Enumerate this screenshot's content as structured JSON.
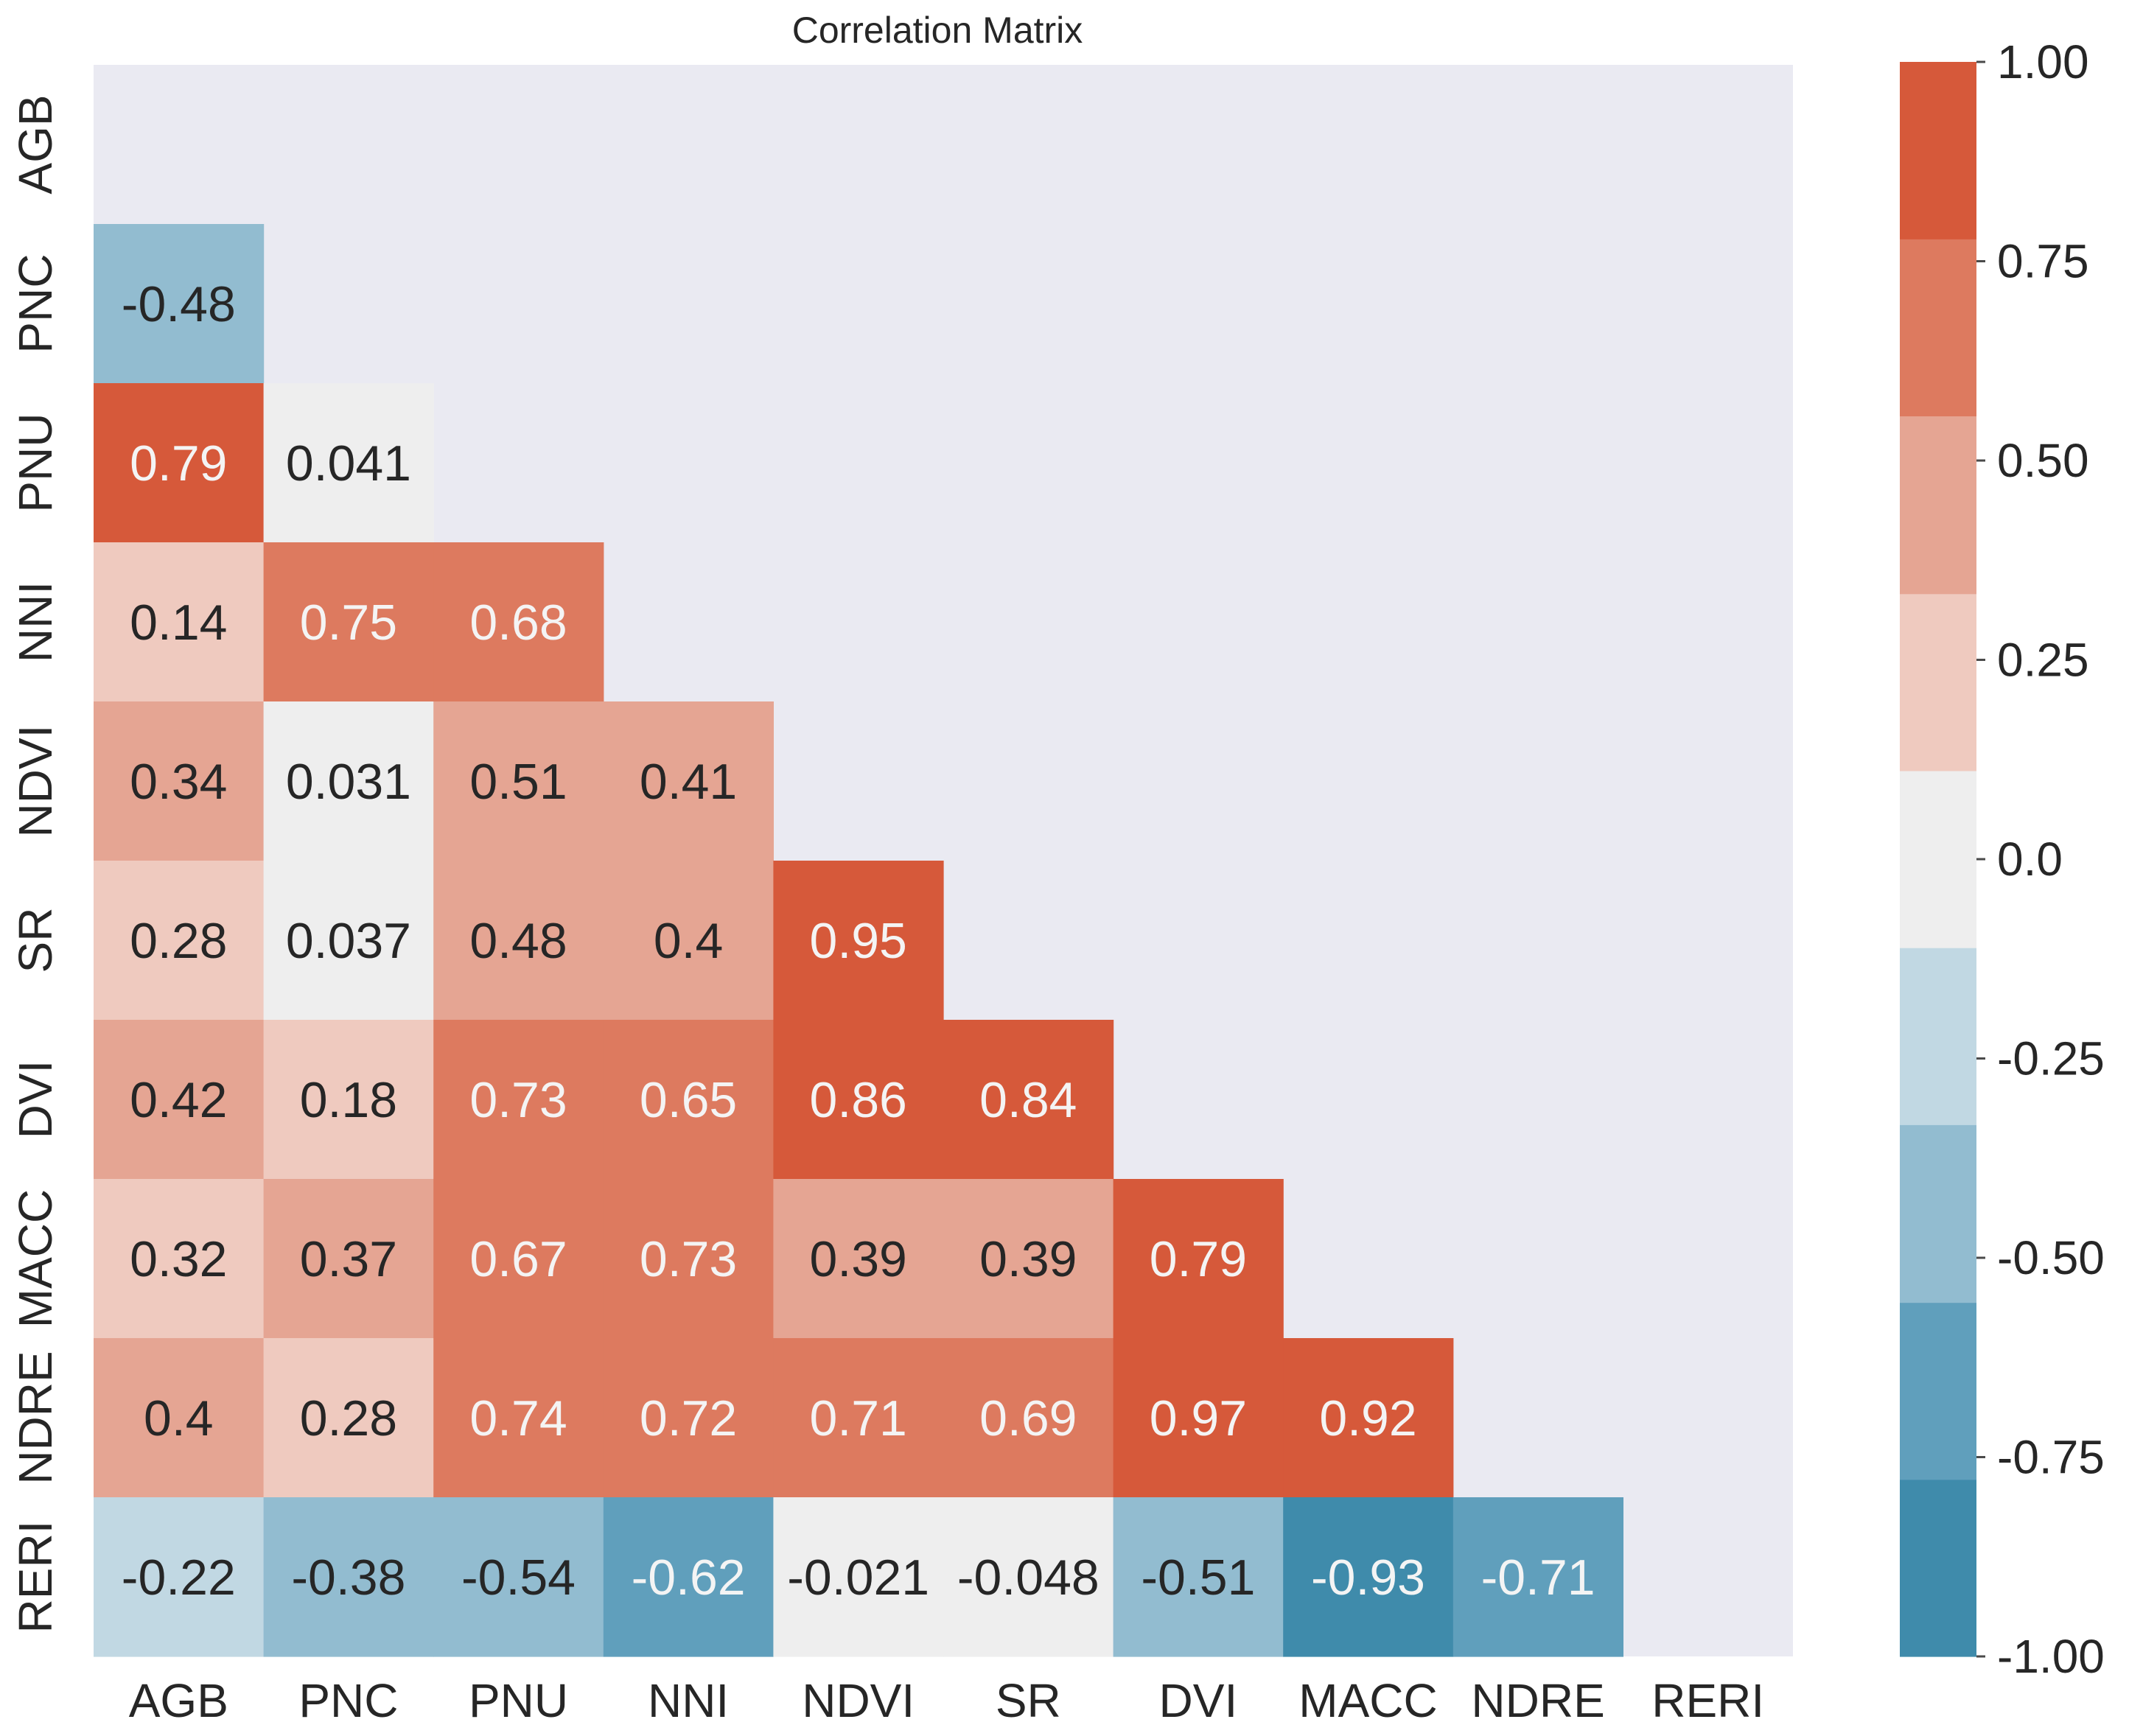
{
  "chart_data": {
    "type": "heatmap",
    "title": "Correlation Matrix",
    "variables": [
      "AGB",
      "PNC",
      "PNU",
      "NNI",
      "NDVI",
      "SR",
      "DVI",
      "MACC",
      "NDRE",
      "RERI"
    ],
    "mask": "upper-triangle-and-diagonal",
    "cells": [
      {
        "row": "PNC",
        "col": "AGB",
        "label": "-0.48",
        "value": -0.48
      },
      {
        "row": "PNU",
        "col": "AGB",
        "label": "0.79",
        "value": 0.79
      },
      {
        "row": "PNU",
        "col": "PNC",
        "label": "0.041",
        "value": 0.041
      },
      {
        "row": "NNI",
        "col": "AGB",
        "label": "0.14",
        "value": 0.14
      },
      {
        "row": "NNI",
        "col": "PNC",
        "label": "0.75",
        "value": 0.75
      },
      {
        "row": "NNI",
        "col": "PNU",
        "label": "0.68",
        "value": 0.68
      },
      {
        "row": "NDVI",
        "col": "AGB",
        "label": "0.34",
        "value": 0.34
      },
      {
        "row": "NDVI",
        "col": "PNC",
        "label": "0.031",
        "value": 0.031
      },
      {
        "row": "NDVI",
        "col": "PNU",
        "label": "0.51",
        "value": 0.51
      },
      {
        "row": "NDVI",
        "col": "NNI",
        "label": "0.41",
        "value": 0.41
      },
      {
        "row": "SR",
        "col": "AGB",
        "label": "0.28",
        "value": 0.28
      },
      {
        "row": "SR",
        "col": "PNC",
        "label": "0.037",
        "value": 0.037
      },
      {
        "row": "SR",
        "col": "PNU",
        "label": "0.48",
        "value": 0.48
      },
      {
        "row": "SR",
        "col": "NNI",
        "label": "0.4",
        "value": 0.4
      },
      {
        "row": "SR",
        "col": "NDVI",
        "label": "0.95",
        "value": 0.95
      },
      {
        "row": "DVI",
        "col": "AGB",
        "label": "0.42",
        "value": 0.42
      },
      {
        "row": "DVI",
        "col": "PNC",
        "label": "0.18",
        "value": 0.18
      },
      {
        "row": "DVI",
        "col": "PNU",
        "label": "0.73",
        "value": 0.73
      },
      {
        "row": "DVI",
        "col": "NNI",
        "label": "0.65",
        "value": 0.65
      },
      {
        "row": "DVI",
        "col": "NDVI",
        "label": "0.86",
        "value": 0.86
      },
      {
        "row": "DVI",
        "col": "SR",
        "label": "0.84",
        "value": 0.84
      },
      {
        "row": "MACC",
        "col": "AGB",
        "label": "0.32",
        "value": 0.32
      },
      {
        "row": "MACC",
        "col": "PNC",
        "label": "0.37",
        "value": 0.37
      },
      {
        "row": "MACC",
        "col": "PNU",
        "label": "0.67",
        "value": 0.67
      },
      {
        "row": "MACC",
        "col": "NNI",
        "label": "0.73",
        "value": 0.73
      },
      {
        "row": "MACC",
        "col": "NDVI",
        "label": "0.39",
        "value": 0.39
      },
      {
        "row": "MACC",
        "col": "SR",
        "label": "0.39",
        "value": 0.39
      },
      {
        "row": "MACC",
        "col": "DVI",
        "label": "0.79",
        "value": 0.79
      },
      {
        "row": "NDRE",
        "col": "AGB",
        "label": "0.4",
        "value": 0.4
      },
      {
        "row": "NDRE",
        "col": "PNC",
        "label": "0.28",
        "value": 0.28
      },
      {
        "row": "NDRE",
        "col": "PNU",
        "label": "0.74",
        "value": 0.74
      },
      {
        "row": "NDRE",
        "col": "NNI",
        "label": "0.72",
        "value": 0.72
      },
      {
        "row": "NDRE",
        "col": "NDVI",
        "label": "0.71",
        "value": 0.71
      },
      {
        "row": "NDRE",
        "col": "SR",
        "label": "0.69",
        "value": 0.69
      },
      {
        "row": "NDRE",
        "col": "DVI",
        "label": "0.97",
        "value": 0.97
      },
      {
        "row": "NDRE",
        "col": "MACC",
        "label": "0.92",
        "value": 0.92
      },
      {
        "row": "RERI",
        "col": "AGB",
        "label": "-0.22",
        "value": -0.22
      },
      {
        "row": "RERI",
        "col": "PNC",
        "label": "-0.38",
        "value": -0.38
      },
      {
        "row": "RERI",
        "col": "PNU",
        "label": "-0.54",
        "value": -0.54
      },
      {
        "row": "RERI",
        "col": "NNI",
        "label": "-0.62",
        "value": -0.62
      },
      {
        "row": "RERI",
        "col": "NDVI",
        "label": "-0.021",
        "value": -0.021
      },
      {
        "row": "RERI",
        "col": "SR",
        "label": "-0.048",
        "value": -0.048
      },
      {
        "row": "RERI",
        "col": "DVI",
        "label": "-0.51",
        "value": -0.51
      },
      {
        "row": "RERI",
        "col": "MACC",
        "label": "-0.93",
        "value": -0.93
      },
      {
        "row": "RERI",
        "col": "NDRE",
        "label": "-0.71",
        "value": -0.71
      }
    ],
    "colorbar": {
      "vmin": -1.0,
      "vmax": 1.0,
      "ticks": [
        1.0,
        0.75,
        0.5,
        0.25,
        0.0,
        -0.25,
        -0.5,
        -0.75,
        -1.0
      ],
      "tick_labels": [
        "1.00",
        "0.75",
        "0.50",
        "0.25",
        "0.0",
        "-0.25",
        "-0.50",
        "-0.75",
        "-1.00"
      ],
      "bins": [
        {
          "from": -1.0,
          "to": -0.778,
          "color": "#3f8bab"
        },
        {
          "from": -0.778,
          "to": -0.556,
          "color": "#609fbc"
        },
        {
          "from": -0.556,
          "to": -0.333,
          "color": "#92bcd0"
        },
        {
          "from": -0.333,
          "to": -0.111,
          "color": "#c1d8e3"
        },
        {
          "from": -0.111,
          "to": 0.111,
          "color": "#eeeeee"
        },
        {
          "from": 0.111,
          "to": 0.333,
          "color": "#efcabf"
        },
        {
          "from": 0.333,
          "to": 0.556,
          "color": "#e5a593"
        },
        {
          "from": 0.556,
          "to": 0.778,
          "color": "#dd7a5f"
        },
        {
          "from": 0.778,
          "to": 1.0,
          "color": "#d6593a"
        }
      ]
    },
    "colors": {
      "background": "#eaeaf2",
      "text_dark": "#262626",
      "text_light": "#f4f4f4"
    }
  }
}
